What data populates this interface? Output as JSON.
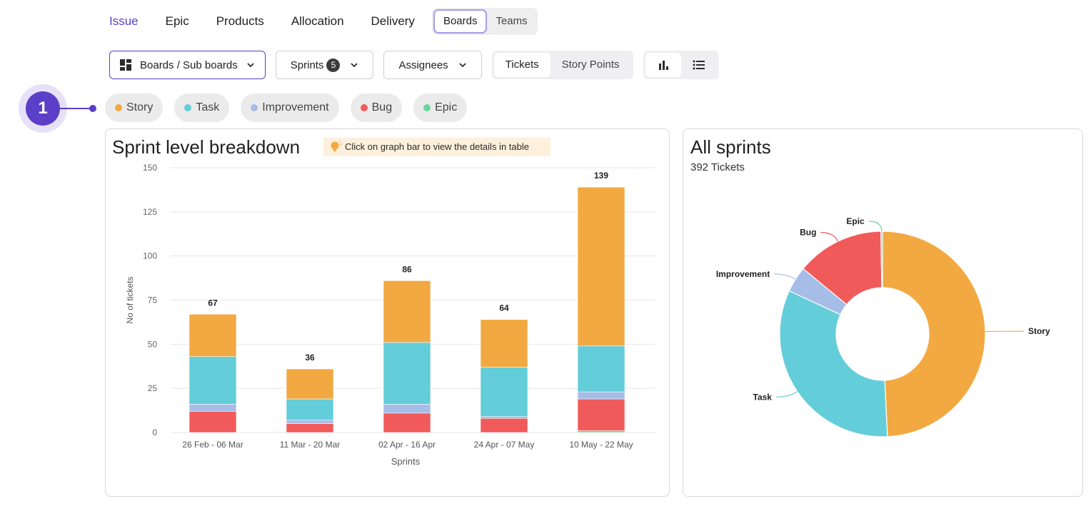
{
  "nav": {
    "items": [
      "Issue",
      "Epic",
      "Products",
      "Allocation",
      "Delivery"
    ],
    "active": "Issue",
    "view_toggle": [
      "Boards",
      "Teams"
    ],
    "view_selected": "Boards"
  },
  "filters": {
    "boards_label": "Boards / Sub boards",
    "sprints_label": "Sprints",
    "sprints_count": "5",
    "assignees_label": "Assignees",
    "metric_options": [
      "Tickets",
      "Story Points"
    ],
    "metric_selected": "Tickets",
    "chart_icon": "bar-chart-icon",
    "list_icon": "list-icon"
  },
  "callout": {
    "number": "1"
  },
  "legend": [
    {
      "name": "Story",
      "color": "#f2a942"
    },
    {
      "name": "Task",
      "color": "#63cdd9"
    },
    {
      "name": "Improvement",
      "color": "#a6bde8"
    },
    {
      "name": "Bug",
      "color": "#f15a5a"
    },
    {
      "name": "Epic",
      "color": "#6cd49b"
    }
  ],
  "left_card": {
    "title": "Sprint level breakdown",
    "hint": "Click on graph bar to view the details in table"
  },
  "right_card": {
    "title": "All sprints",
    "subtitle": "392 Tickets"
  },
  "chart_data": [
    {
      "type": "bar",
      "stacked": true,
      "xlabel": "Sprints",
      "ylabel": "No of tickets",
      "ylim": [
        0,
        150
      ],
      "yticks": [
        0,
        25,
        50,
        75,
        100,
        125,
        150
      ],
      "grid": true,
      "categories": [
        "26 Feb - 06 Mar",
        "11 Mar - 20 Mar",
        "02 Apr - 16 Apr",
        "24 Apr - 07 May",
        "10 May - 22 May"
      ],
      "totals": [
        67,
        36,
        86,
        64,
        139
      ],
      "series": [
        {
          "name": "Epic",
          "color": "#6cd49b",
          "values": [
            0,
            0,
            0,
            0,
            1
          ]
        },
        {
          "name": "Bug",
          "color": "#f15a5a",
          "values": [
            12,
            5,
            11,
            8,
            18
          ]
        },
        {
          "name": "Improvement",
          "color": "#a6bde8",
          "values": [
            4,
            2,
            5,
            1,
            4
          ]
        },
        {
          "name": "Task",
          "color": "#63cdd9",
          "values": [
            27,
            12,
            35,
            28,
            26
          ]
        },
        {
          "name": "Story",
          "color": "#f2a942",
          "values": [
            24,
            17,
            35,
            27,
            90
          ]
        }
      ]
    },
    {
      "type": "pie",
      "donut": true,
      "total": 392,
      "slices": [
        {
          "label": "Story",
          "value": 193,
          "color": "#f2a942"
        },
        {
          "label": "Task",
          "value": 128,
          "color": "#63cdd9"
        },
        {
          "label": "Improvement",
          "value": 16,
          "color": "#a6bde8"
        },
        {
          "label": "Bug",
          "value": 54,
          "color": "#f15a5a"
        },
        {
          "label": "Epic",
          "value": 1,
          "color": "#6cd49b"
        }
      ]
    }
  ]
}
